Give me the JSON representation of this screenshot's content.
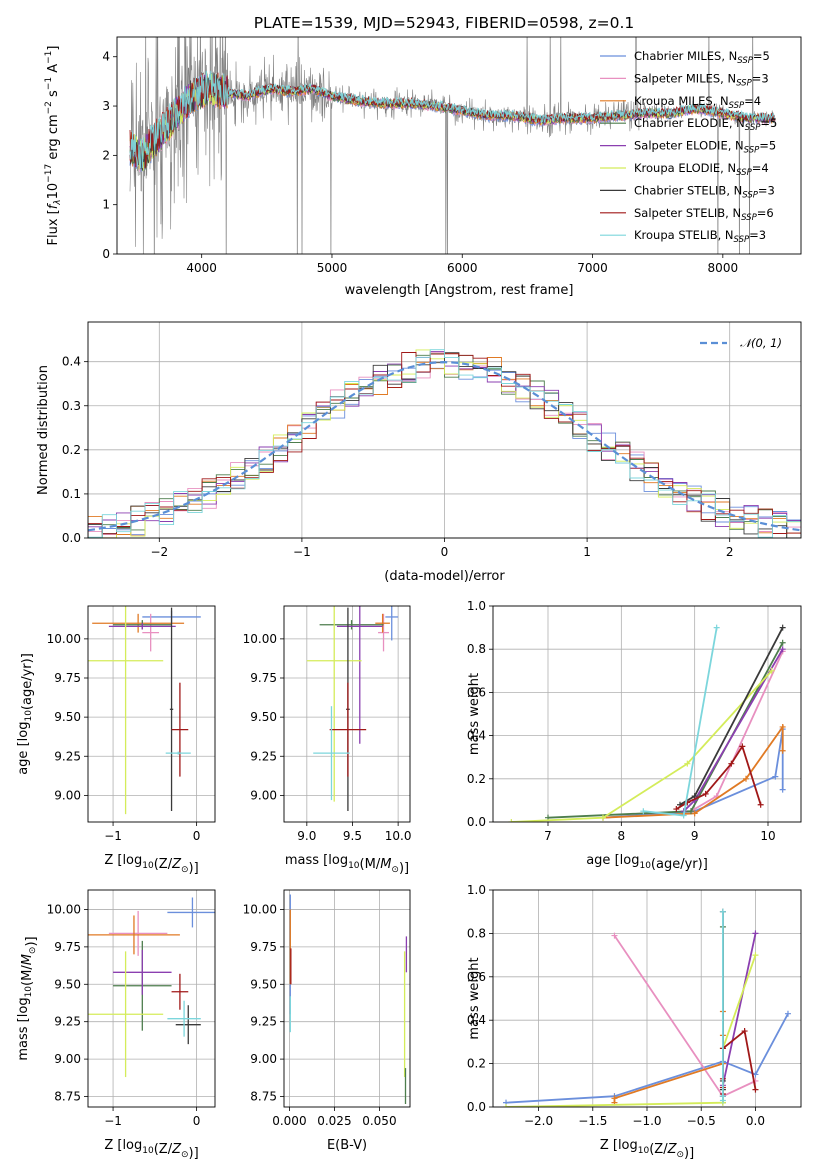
{
  "figure": {
    "title": "PLATE=1539, MJD=52943, FIBERID=0598, z=0.1"
  },
  "colors": {
    "Chabrier MILES": "#6b8fdc",
    "Salpeter MILES": "#e890c0",
    "Kroupa MILES": "#e07a24",
    "Chabrier ELODIE": "#4d7d4d",
    "Salpeter ELODIE": "#8b3fb0",
    "Kroupa ELODIE": "#d4ec5a",
    "Chabrier STELIB": "#3a3a3a",
    "Salpeter STELIB": "#a01818",
    "Kroupa STELIB": "#7cd6dc",
    "data": "#808080",
    "normal": "#5a8fd6"
  },
  "chart_data": [
    {
      "id": "spectrum",
      "type": "line",
      "xlabel": "wavelength [Angstrom, rest frame]",
      "ylabel": "Flux [f_λ10^-17 erg cm^-2 s^-1 A^-1]",
      "xlim": [
        3350,
        8600
      ],
      "ylim": [
        0,
        4.4
      ],
      "xticks": [
        4000,
        5000,
        6000,
        7000,
        8000
      ],
      "yticks": [
        0,
        1,
        2,
        3,
        4
      ],
      "data_x_range": [
        3450,
        8400
      ],
      "continuum_profile": {
        "x": [
          3450,
          3550,
          3650,
          3750,
          3850,
          3950,
          4050,
          4150,
          4250,
          4350,
          4450,
          4550,
          4650,
          4750,
          4850,
          5000,
          5200,
          5400,
          5600,
          5800,
          6000,
          6200,
          6400,
          6600,
          6800,
          7000,
          7200,
          7400,
          7600,
          7800,
          8000,
          8200,
          8400
        ],
        "y": [
          2.15,
          2.0,
          2.35,
          2.65,
          3.0,
          3.25,
          3.35,
          3.3,
          3.25,
          3.2,
          3.3,
          3.35,
          3.3,
          3.3,
          3.35,
          3.2,
          3.1,
          3.05,
          3.05,
          3.0,
          2.9,
          2.8,
          2.8,
          2.7,
          2.75,
          2.75,
          2.8,
          2.85,
          2.85,
          2.95,
          2.85,
          2.75,
          2.75
        ]
      },
      "legend": [
        {
          "label": "Chabrier MILES",
          "nssp": "5"
        },
        {
          "label": "Salpeter MILES",
          "nssp": "3"
        },
        {
          "label": "Kroupa MILES",
          "nssp": "4"
        },
        {
          "label": "Chabrier ELODIE",
          "nssp": "5"
        },
        {
          "label": "Salpeter ELODIE",
          "nssp": "5"
        },
        {
          "label": "Kroupa ELODIE",
          "nssp": "4"
        },
        {
          "label": "Chabrier STELIB",
          "nssp": "3"
        },
        {
          "label": "Salpeter STELIB",
          "nssp": "6"
        },
        {
          "label": "Kroupa STELIB",
          "nssp": "3"
        }
      ],
      "legend_position": "top-right"
    },
    {
      "id": "residuals",
      "type": "line",
      "xlabel": "(data-model)/error",
      "ylabel": "Normed distribution",
      "xlim": [
        -2.5,
        2.5
      ],
      "ylim": [
        0,
        0.49
      ],
      "xticks": [
        -2,
        -1,
        0,
        1,
        2
      ],
      "yticks": [
        0.0,
        0.1,
        0.2,
        0.3,
        0.4
      ],
      "grid": true,
      "legend_label": "𝒩(0, 1)",
      "legend_position": "top-right",
      "bin_width": 0.1
    },
    {
      "id": "age-vs-z",
      "type": "scatter",
      "xlabel": "Z [log10(Z/Z⊙)]",
      "ylabel": "age  [log10(age/yr)]",
      "xlim": [
        -1.3,
        0.22
      ],
      "ylim": [
        8.83,
        10.21
      ],
      "xticks": [
        -1,
        0
      ],
      "yticks": [
        9.0,
        9.25,
        9.5,
        9.75,
        10.0
      ],
      "grid": true,
      "points": [
        {
          "s": "Chabrier MILES",
          "x": -0.3,
          "y": 10.14,
          "ex": 0.35,
          "ey": 0.04
        },
        {
          "s": "Salpeter MILES",
          "x": -0.55,
          "y": 10.04,
          "ex": 0.1,
          "ey": 0.12
        },
        {
          "s": "Kroupa MILES",
          "x": -0.7,
          "y": 10.1,
          "ex": 0.55,
          "ey": 0.06
        },
        {
          "s": "Chabrier ELODIE",
          "x": -0.65,
          "y": 10.09,
          "ex": 0.35,
          "ey": 0.03
        },
        {
          "s": "Salpeter ELODIE",
          "x": -0.65,
          "y": 10.08,
          "ex": 0.4,
          "ey": 0.02
        },
        {
          "s": "Kroupa ELODIE",
          "x": -0.85,
          "y": 9.86,
          "ex": 0.45,
          "ey": 0.98
        },
        {
          "s": "Chabrier STELIB",
          "x": -0.3,
          "y": 9.55,
          "ex": 0.02,
          "ey": 0.65
        },
        {
          "s": "Salpeter STELIB",
          "x": -0.2,
          "y": 9.42,
          "ex": 0.1,
          "ey": 0.3
        },
        {
          "s": "Kroupa STELIB",
          "x": -0.22,
          "y": 9.27,
          "ex": 0.15,
          "ey": 0.01
        }
      ]
    },
    {
      "id": "age-vs-mass",
      "type": "scatter",
      "xlabel": "mass [log10(M/M⊙)]",
      "ylabel": "",
      "xlim": [
        8.75,
        10.13
      ],
      "ylim": [
        8.83,
        10.21
      ],
      "xticks": [
        9.0,
        9.5,
        10.0
      ],
      "yticks": [
        9.0,
        9.25,
        9.5,
        9.75,
        10.0
      ],
      "grid": true,
      "points": [
        {
          "s": "Chabrier MILES",
          "x": 9.93,
          "y": 10.14,
          "ex": 0.07,
          "ey": 0.15
        },
        {
          "s": "Salpeter MILES",
          "x": 9.84,
          "y": 10.04,
          "ex": 0.06,
          "ey": 0.12
        },
        {
          "s": "Kroupa MILES",
          "x": 9.83,
          "y": 10.1,
          "ex": 0.08,
          "ey": 0.06
        },
        {
          "s": "Chabrier ELODIE",
          "x": 9.49,
          "y": 10.09,
          "ex": 0.35,
          "ey": 0.03
        },
        {
          "s": "Salpeter ELODIE",
          "x": 9.58,
          "y": 10.08,
          "ex": 0.25,
          "ey": 0.75
        },
        {
          "s": "Kroupa ELODIE",
          "x": 9.3,
          "y": 9.86,
          "ex": 0.3,
          "ey": 0.9
        },
        {
          "s": "Chabrier STELIB",
          "x": 9.45,
          "y": 9.55,
          "ex": 0.02,
          "ey": 0.65
        },
        {
          "s": "Salpeter STELIB",
          "x": 9.45,
          "y": 9.42,
          "ex": 0.2,
          "ey": 0.3
        },
        {
          "s": "Kroupa STELIB",
          "x": 9.27,
          "y": 9.27,
          "ex": 0.2,
          "ey": 0.3
        }
      ]
    },
    {
      "id": "massweight-vs-age",
      "type": "line",
      "xlabel": "age  [log10(age/yr)]",
      "ylabel": "mass weight",
      "xlim": [
        6.25,
        10.45
      ],
      "ylim": [
        0,
        1.0
      ],
      "xticks": [
        7,
        8,
        9,
        10
      ],
      "yticks": [
        0.0,
        0.2,
        0.4,
        0.6,
        0.8,
        1.0
      ],
      "grid": true
    },
    {
      "id": "mass-vs-z",
      "type": "scatter",
      "xlabel": "Z [log10(Z/Z⊙)]",
      "ylabel": "mass [log10(M/M⊙)]",
      "xlim": [
        -1.3,
        0.22
      ],
      "ylim": [
        8.68,
        10.13
      ],
      "xticks": [
        -1,
        0
      ],
      "yticks": [
        8.75,
        9.0,
        9.25,
        9.5,
        9.75,
        10.0
      ],
      "grid": true,
      "points": [
        {
          "s": "Chabrier MILES",
          "x": -0.05,
          "y": 9.98,
          "ex": 0.3,
          "ey": 0.1
        },
        {
          "s": "Salpeter MILES",
          "x": -0.7,
          "y": 9.84,
          "ex": 0.35,
          "ey": 0.15
        },
        {
          "s": "Kroupa MILES",
          "x": -0.75,
          "y": 9.83,
          "ex": 0.55,
          "ey": 0.13
        },
        {
          "s": "Chabrier ELODIE",
          "x": -0.65,
          "y": 9.49,
          "ex": 0.35,
          "ey": 0.3
        },
        {
          "s": "Salpeter ELODIE",
          "x": -0.65,
          "y": 9.58,
          "ex": 0.35,
          "ey": 0.15
        },
        {
          "s": "Kroupa ELODIE",
          "x": -0.85,
          "y": 9.3,
          "ex": 0.45,
          "ey": 0.42
        },
        {
          "s": "Chabrier STELIB",
          "x": -0.1,
          "y": 9.23,
          "ex": 0.15,
          "ey": 0.13
        },
        {
          "s": "Salpeter STELIB",
          "x": -0.2,
          "y": 9.45,
          "ex": 0.1,
          "ey": 0.12
        },
        {
          "s": "Kroupa STELIB",
          "x": -0.15,
          "y": 9.27,
          "ex": 0.2,
          "ey": 0.12
        }
      ]
    },
    {
      "id": "mass-vs-ebv",
      "type": "scatter",
      "xlabel": "E(B-V)",
      "ylabel": "",
      "xlim": [
        -0.003,
        0.067
      ],
      "ylim": [
        8.68,
        10.13
      ],
      "xticks": [
        0.0,
        0.025,
        0.05
      ],
      "xtick_labels": [
        "0.000",
        "0.025",
        "0.050"
      ],
      "yticks": [
        8.75,
        9.0,
        9.25,
        9.5,
        9.75,
        10.0
      ],
      "grid": true,
      "points": [
        {
          "s": "Chabrier MILES",
          "x": 0.0005,
          "y": 9.7,
          "ex": 0.0,
          "ey": 0.4
        },
        {
          "s": "Kroupa MILES",
          "x": 0.0005,
          "y": 9.75,
          "ex": 0.0,
          "ey": 0.25
        },
        {
          "s": "Salpeter STELIB",
          "x": 0.0008,
          "y": 9.62,
          "ex": 0.0,
          "ey": 0.12
        },
        {
          "s": "Kroupa STELIB",
          "x": 0.0005,
          "y": 9.3,
          "ex": 0.0,
          "ey": 0.12
        },
        {
          "s": "Salpeter ELODIE",
          "x": 0.065,
          "y": 9.7,
          "ex": 0.0,
          "ey": 0.12
        },
        {
          "s": "Kroupa ELODIE",
          "x": 0.064,
          "y": 9.3,
          "ex": 0.0,
          "ey": 0.42
        },
        {
          "s": "Chabrier ELODIE",
          "x": 0.0645,
          "y": 8.82,
          "ex": 0.0,
          "ey": 0.12
        }
      ]
    },
    {
      "id": "massweight-vs-z",
      "type": "line",
      "xlabel": "Z [log10(Z/Z⊙)]",
      "ylabel": "mass weight",
      "xlim": [
        -2.42,
        0.42
      ],
      "ylim": [
        0,
        1.0
      ],
      "xticks": [
        -2.0,
        -1.5,
        -1.0,
        -0.5,
        0.0
      ],
      "yticks": [
        0.0,
        0.2,
        0.4,
        0.6,
        0.8,
        1.0
      ],
      "grid": true
    }
  ],
  "mass_weight_series": [
    {
      "s": "Chabrier MILES",
      "age": [
        7.75,
        9.0,
        10.1,
        10.2,
        10.2
      ],
      "z": [
        -2.3,
        -1.3,
        -0.3,
        0.3,
        0.0
      ],
      "w": [
        0.02,
        0.05,
        0.21,
        0.43,
        0.15
      ]
    },
    {
      "s": "Salpeter MILES",
      "age": [
        8.95,
        9.3,
        10.2
      ],
      "z": [
        -0.3,
        0.0,
        -1.3
      ],
      "w": [
        0.05,
        0.12,
        0.79
      ]
    },
    {
      "s": "Kroupa MILES",
      "age": [
        7.75,
        9.0,
        9.7,
        10.2,
        10.2
      ],
      "z": [
        -1.3,
        -1.3,
        -0.3,
        -0.3,
        -0.3
      ],
      "w": [
        0.02,
        0.04,
        0.2,
        0.44,
        0.33
      ]
    },
    {
      "s": "Chabrier ELODIE",
      "age": [
        7.0,
        8.95,
        10.2
      ],
      "z": [
        -0.3,
        -0.3,
        -0.3
      ],
      "w": [
        0.02,
        0.05,
        0.83
      ]
    },
    {
      "s": "Salpeter ELODIE",
      "age": [
        8.85,
        9.0,
        10.2
      ],
      "z": [
        -0.3,
        -0.3,
        0.0
      ],
      "w": [
        0.05,
        0.1,
        0.8
      ]
    },
    {
      "s": "Kroupa ELODIE",
      "age": [
        6.5,
        7.75,
        8.9,
        10.05
      ],
      "z": [
        -2.3,
        -0.3,
        -0.3,
        0.0
      ],
      "w": [
        0.0,
        0.02,
        0.27,
        0.7
      ]
    },
    {
      "s": "Chabrier STELIB",
      "age": [
        8.8,
        9.0,
        10.2
      ],
      "z": [
        -0.3,
        -0.3,
        -0.3
      ],
      "w": [
        0.08,
        0.12,
        0.9
      ]
    },
    {
      "s": "Salpeter STELIB",
      "age": [
        8.75,
        8.9,
        9.15,
        9.5,
        9.65,
        9.9
      ],
      "z": [
        -0.3,
        -0.3,
        -0.3,
        -0.3,
        -0.1,
        0.0
      ],
      "w": [
        0.06,
        0.09,
        0.13,
        0.27,
        0.35,
        0.08
      ]
    },
    {
      "s": "Kroupa STELIB",
      "age": [
        8.3,
        8.85,
        9.3
      ],
      "z": [
        -0.3,
        -0.3,
        -0.3
      ],
      "w": [
        0.05,
        0.03,
        0.9
      ]
    }
  ]
}
